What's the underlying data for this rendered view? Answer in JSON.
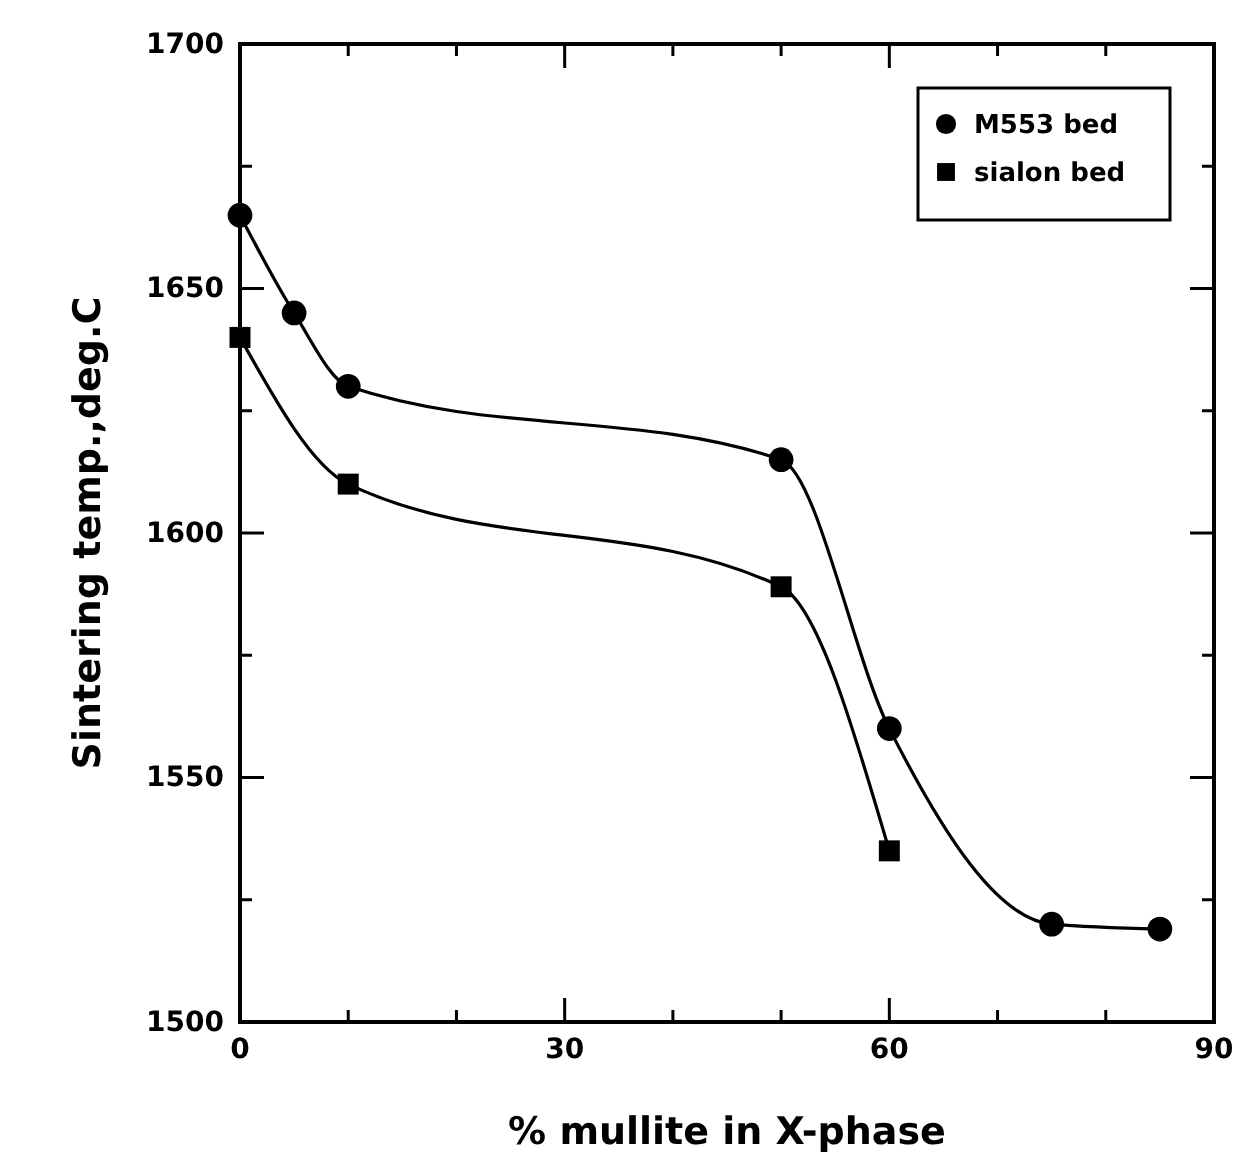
{
  "chart_data": {
    "type": "line",
    "xlabel": "% mullite in X-phase",
    "ylabel": "Sintering temp.,deg.C",
    "xlim": [
      0,
      90
    ],
    "ylim": [
      1500,
      1700
    ],
    "xticks": [
      0,
      {
        "value": 10,
        "label": null
      },
      {
        "value": 20,
        "label": null
      },
      30,
      {
        "value": 40,
        "label": null
      },
      {
        "value": 50,
        "label": null
      },
      60,
      {
        "value": 70,
        "label": null
      },
      {
        "value": 80,
        "label": null
      },
      90
    ],
    "yticks": [
      1500,
      {
        "value": 1525,
        "label": null
      },
      1550,
      {
        "value": 1575,
        "label": null
      },
      1600,
      {
        "value": 1625,
        "label": null
      },
      1650,
      {
        "value": 1675,
        "label": null
      },
      1700
    ],
    "grid": false,
    "legend": "top right",
    "line_style": "solid",
    "series": [
      {
        "name": "M553 bed",
        "color": "#000000",
        "marker": "circle",
        "x": [
          0,
          5,
          10,
          50,
          60,
          75,
          85
        ],
        "values": [
          1665,
          1645,
          1630,
          1615,
          1560,
          1520,
          1519
        ]
      },
      {
        "name": "sialon bed",
        "color": "#000000",
        "marker": "square",
        "x": [
          0,
          10,
          50,
          60
        ],
        "values": [
          1640,
          1610,
          1589,
          1535
        ]
      }
    ]
  }
}
